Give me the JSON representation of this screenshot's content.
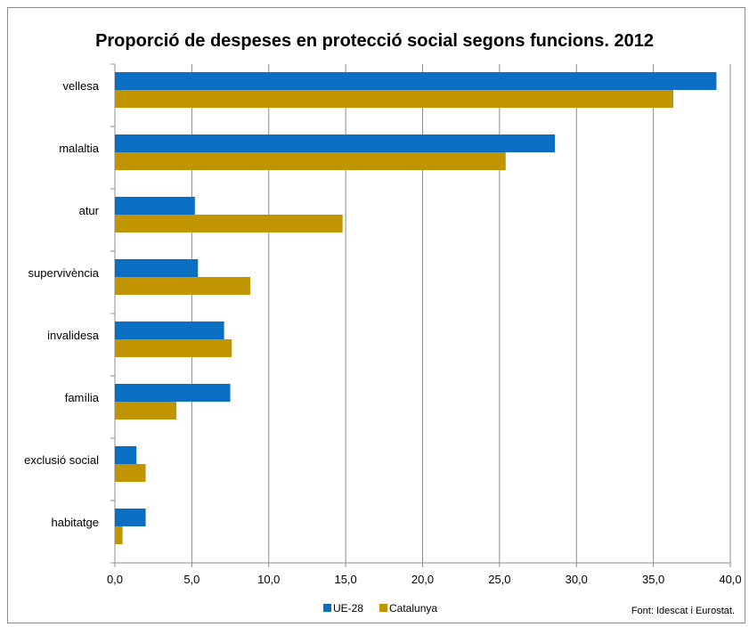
{
  "chart_data": {
    "type": "bar",
    "orientation": "horizontal",
    "title": "Proporció de despeses en protecció social segons funcions. 2012",
    "categories": [
      "vellesa",
      "malaltia",
      "atur",
      "supervivència",
      "invalidesa",
      "família",
      "exclusió social",
      "habitatge"
    ],
    "series": [
      {
        "name": "UE-28",
        "color": "#0a6fc2",
        "values": [
          39.1,
          28.6,
          5.2,
          5.4,
          7.1,
          7.5,
          1.4,
          2.0
        ]
      },
      {
        "name": "Catalunya",
        "color": "#c09500",
        "values": [
          36.3,
          25.4,
          14.8,
          8.8,
          7.6,
          4.0,
          2.0,
          0.5
        ]
      }
    ],
    "xlim": [
      0,
      40
    ],
    "xticks": [
      "0,0",
      "5,0",
      "10,0",
      "15,0",
      "20,0",
      "25,0",
      "30,0",
      "35,0",
      "40,0"
    ],
    "xtick_values": [
      0,
      5,
      10,
      15,
      20,
      25,
      30,
      35,
      40
    ],
    "grid": "vertical",
    "legend_position": "bottom"
  },
  "source_note": "Font: Idescat i Eurostat."
}
